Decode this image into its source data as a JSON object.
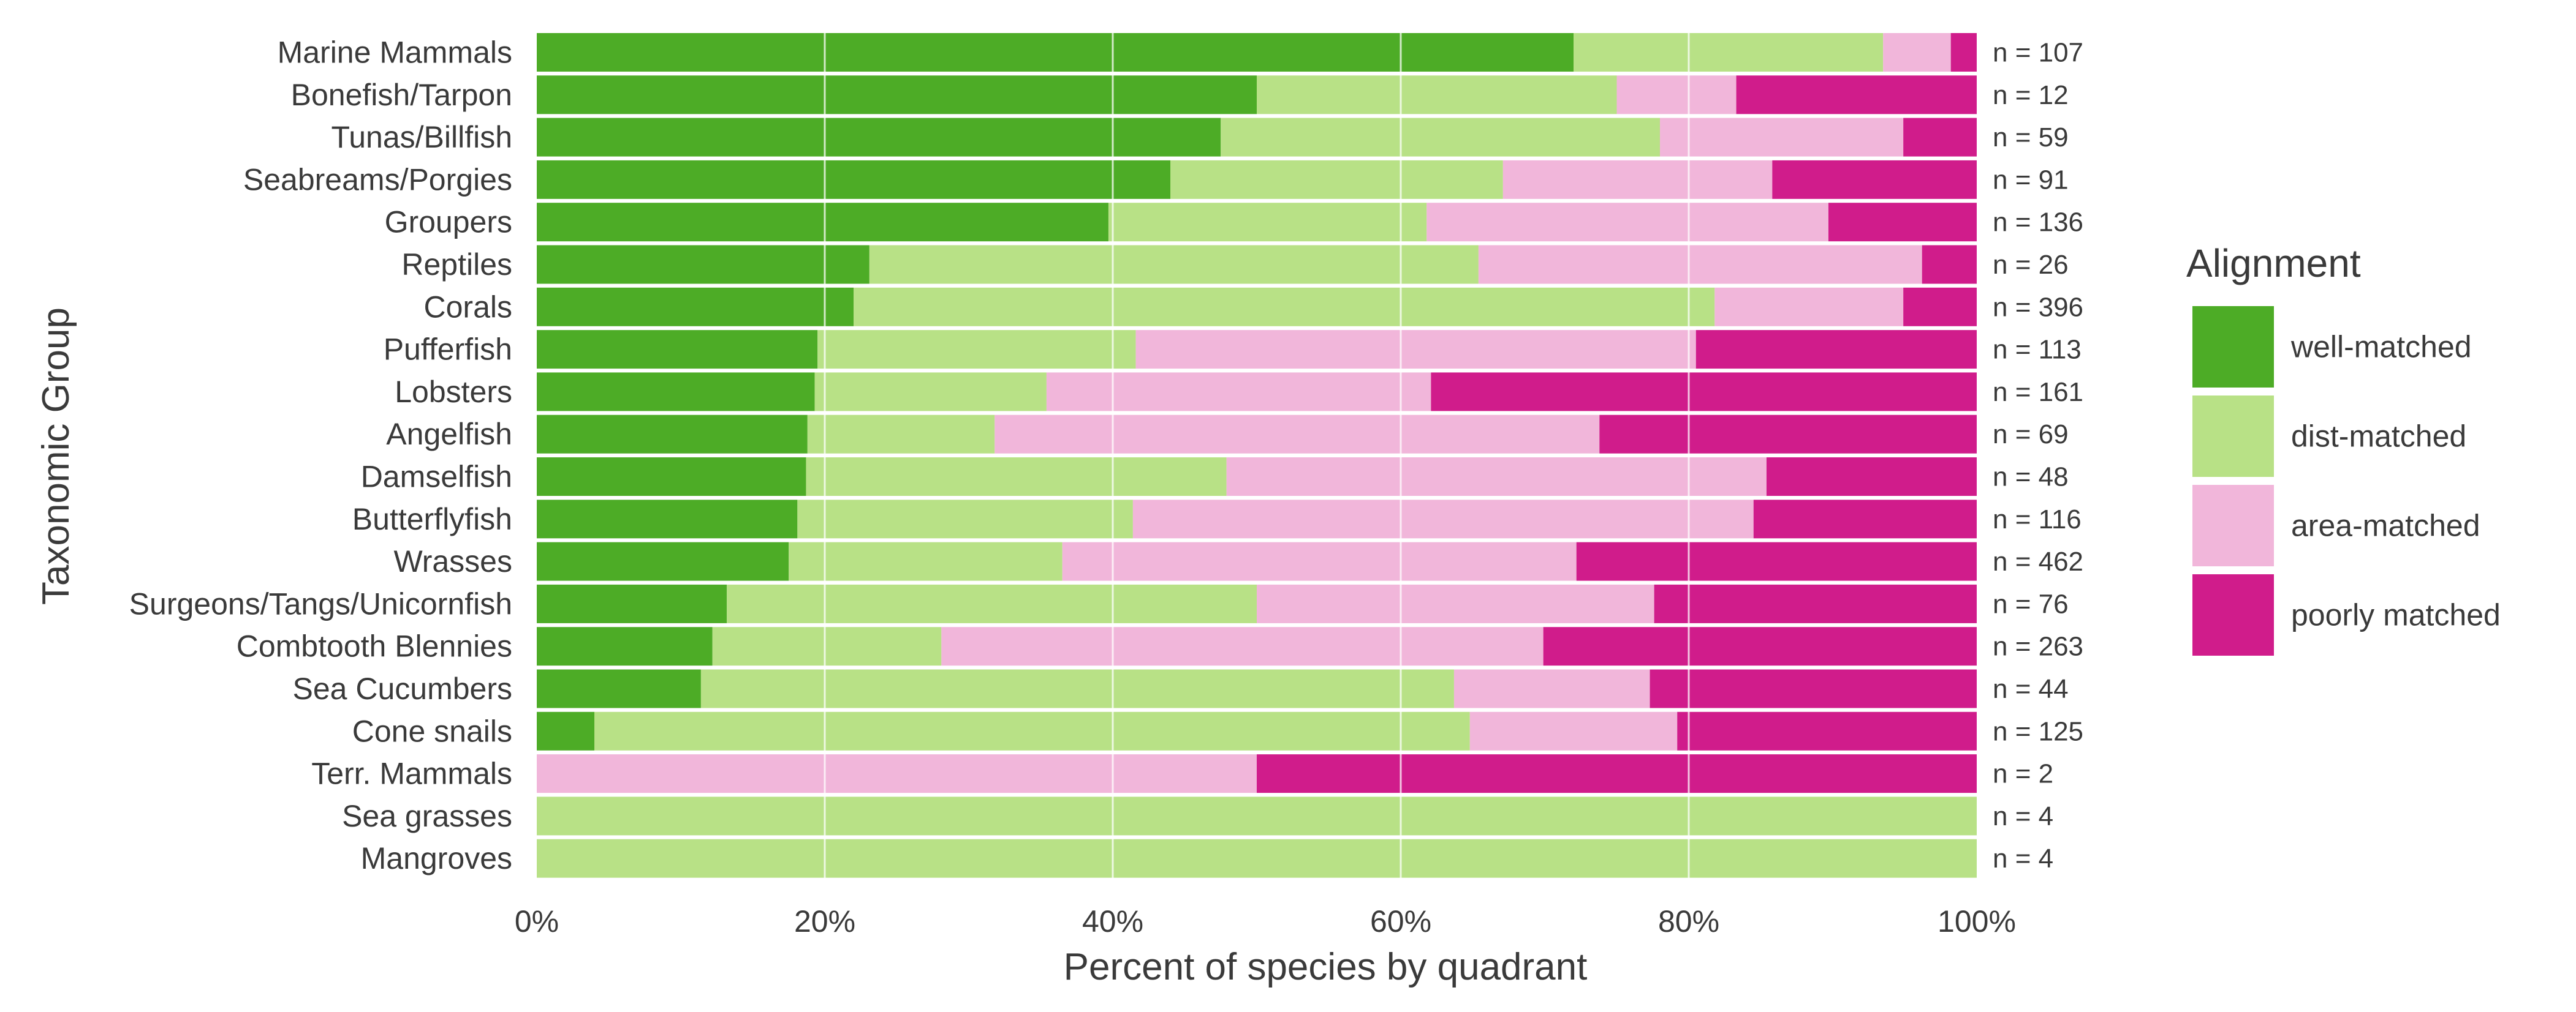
{
  "chart_data": {
    "type": "bar",
    "orientation": "horizontal",
    "stacked": true,
    "normalized": true,
    "xlabel": "Percent of species by quadrant",
    "ylabel": "Taxonomic Group",
    "xlim": [
      0,
      100
    ],
    "xticks": [
      "0%",
      "20%",
      "40%",
      "60%",
      "80%",
      "100%"
    ],
    "grid": true,
    "legend": {
      "title": "Alignment",
      "position": "right"
    },
    "categories": [
      "Marine Mammals",
      "Bonefish/Tarpon",
      "Tunas/Billfish",
      "Seabreams/Porgies",
      "Groupers",
      "Reptiles",
      "Corals",
      "Pufferfish",
      "Lobsters",
      "Angelfish",
      "Damselfish",
      "Butterflyfish",
      "Wrasses",
      "Surgeons/Tangs/Unicornfish",
      "Combtooth Blennies",
      "Sea Cucumbers",
      "Cone snails",
      "Terr. Mammals",
      "Sea grasses",
      "Mangroves"
    ],
    "n_labels": [
      "n = 107",
      "n = 12",
      "n = 59",
      "n = 91",
      "n = 136",
      "n = 26",
      "n = 396",
      "n = 113",
      "n = 161",
      "n = 69",
      "n = 48",
      "n = 116",
      "n = 462",
      "n = 76",
      "n = 263",
      "n = 44",
      "n = 125",
      "n = 2",
      "n = 4",
      "n = 4"
    ],
    "series": [
      {
        "name": "well-matched",
        "color": "#4dac26",
        "values": [
          72.0,
          50.0,
          47.5,
          44.0,
          39.7,
          23.1,
          22.0,
          19.5,
          19.3,
          18.8,
          18.7,
          18.1,
          17.5,
          13.2,
          12.2,
          11.4,
          4.0,
          0.0,
          0.0,
          0.0
        ]
      },
      {
        "name": "dist-matched",
        "color": "#b8e186",
        "values": [
          21.5,
          25.0,
          30.5,
          23.1,
          22.1,
          42.3,
          59.8,
          22.1,
          16.1,
          13.0,
          29.2,
          23.3,
          19.0,
          36.8,
          15.9,
          52.3,
          60.8,
          0.0,
          100.0,
          100.0
        ]
      },
      {
        "name": "area-matched",
        "color": "#f1b6da",
        "values": [
          4.7,
          8.3,
          16.9,
          18.7,
          27.9,
          30.8,
          13.1,
          38.9,
          26.7,
          42.0,
          37.5,
          43.1,
          35.7,
          27.6,
          41.8,
          13.6,
          14.4,
          50.0,
          0.0,
          0.0
        ]
      },
      {
        "name": "poorly matched",
        "color": "#d01c8b",
        "values": [
          1.8,
          16.7,
          5.1,
          14.2,
          10.3,
          3.8,
          5.1,
          19.5,
          37.9,
          26.2,
          14.6,
          15.5,
          27.8,
          22.4,
          30.1,
          22.7,
          20.8,
          50.0,
          0.0,
          0.0
        ]
      }
    ]
  }
}
